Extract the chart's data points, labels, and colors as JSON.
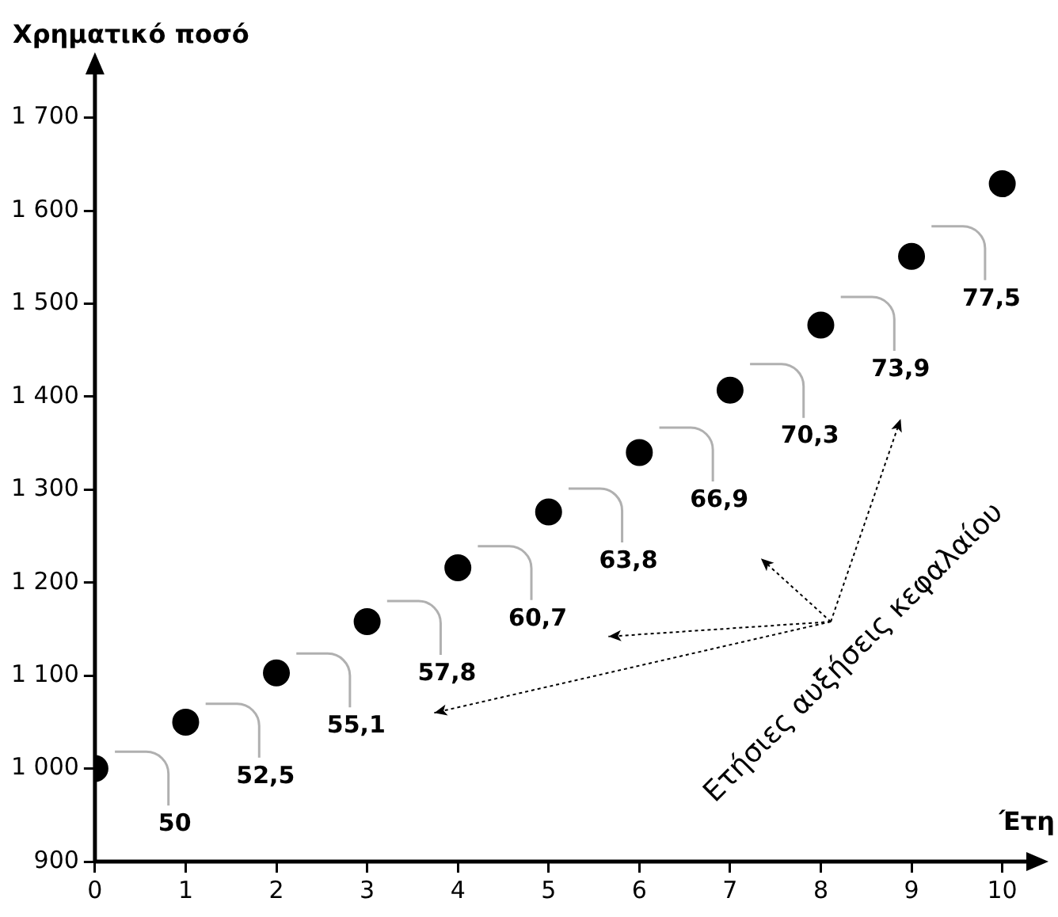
{
  "chart_data": {
    "type": "scatter",
    "ylabel": "Χρηματικό ποσό",
    "xlabel": "Έτη",
    "x": [
      0,
      1,
      2,
      3,
      4,
      5,
      6,
      7,
      8,
      9,
      10
    ],
    "values": [
      1000,
      1050,
      1103,
      1158,
      1216,
      1276,
      1340,
      1407,
      1477,
      1551,
      1629
    ],
    "color": "#000000",
    "marker": "circle",
    "xlim": [
      0,
      10.3
    ],
    "xticks": [
      0,
      1,
      2,
      3,
      4,
      5,
      6,
      7,
      8,
      9,
      10
    ],
    "ylim": [
      900,
      1750
    ],
    "yticks": [
      900,
      {
        "value": 1000,
        "label": "1 000"
      },
      {
        "value": 1100,
        "label": "1 100"
      },
      {
        "value": 1200,
        "label": "1 200"
      },
      {
        "value": 1300,
        "label": "1 300"
      },
      {
        "value": 1400,
        "label": "1 400"
      },
      {
        "value": 1500,
        "label": "1 500"
      },
      {
        "value": 1600,
        "label": "1 600"
      },
      {
        "value": 1700,
        "label": "1 700"
      }
    ],
    "grid": false,
    "legend": false,
    "annotations": [
      "50",
      "52,5",
      "55,1",
      "57,8",
      "60,7",
      "63,8",
      "66,9",
      "70,3",
      "73,9",
      "77,5",
      "Ετήσιες αυξήσεις κεφαλαίου"
    ]
  }
}
